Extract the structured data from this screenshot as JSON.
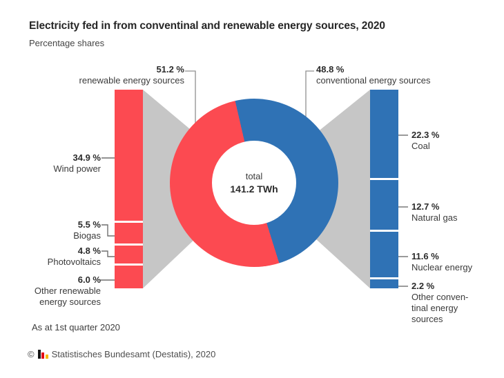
{
  "title": "Electricity fed in from conventinal and renewable energy sources, 2020",
  "subtitle": "Percentage shares",
  "colors": {
    "renewable": "#fc4a51",
    "conventional": "#2f72b5",
    "connector": "#c6c6c6"
  },
  "donut": {
    "center_label": "total",
    "center_value": "141.2 TWh"
  },
  "groups": {
    "renewable": {
      "pct": "51.2 %",
      "label": "renewable energy sources"
    },
    "conventional": {
      "pct": "48.8 %",
      "label": "conventional energy sources"
    }
  },
  "left_items": [
    {
      "pct": "34.9 %",
      "line1": "Wind power"
    },
    {
      "pct": "5.5 %",
      "line1": "Biogas"
    },
    {
      "pct": "4.8 %",
      "line1": "Photovoltaics"
    },
    {
      "pct": "6.0 %",
      "line1": "Other renewable",
      "line2": "energy sources"
    }
  ],
  "right_items": [
    {
      "pct": "22.3 %",
      "line1": "Coal"
    },
    {
      "pct": "12.7 %",
      "line1": "Natural gas"
    },
    {
      "pct": "11.6 %",
      "line1": "Nuclear energy"
    },
    {
      "pct": "2.2 %",
      "line1": "Other conven-",
      "line2": "tinal energy",
      "line3": "sources"
    }
  ],
  "footnote": "As at 1st quarter 2020",
  "copyright": {
    "symbol": "©",
    "text": "Statistisches Bundesamt (Destatis), 2020"
  },
  "chart_data": [
    {
      "type": "pie",
      "subtype": "donut",
      "title": "Electricity fed in from conventinal and renewable energy sources, 2020",
      "subtitle": "Percentage shares",
      "labels": [
        "renewable energy sources",
        "conventional energy sources"
      ],
      "values": [
        51.2,
        48.8
      ],
      "unit": "%",
      "center_text": "total 141.2 TWh",
      "colors": [
        "#fc4a51",
        "#2f72b5"
      ],
      "start_angle_deg": -13
    },
    {
      "type": "bar",
      "name": "renewable energy sources breakdown",
      "orientation": "vertical-stacked",
      "categories": [
        "Wind power",
        "Biogas",
        "Photovoltaics",
        "Other renewable energy sources"
      ],
      "values": [
        34.9,
        5.5,
        4.8,
        6.0
      ],
      "unit": "%"
    },
    {
      "type": "bar",
      "name": "conventional energy sources breakdown",
      "orientation": "vertical-stacked",
      "categories": [
        "Coal",
        "Natural gas",
        "Nuclear energy",
        "Other conventinal energy sources"
      ],
      "values": [
        22.3,
        12.7,
        11.6,
        2.2
      ],
      "unit": "%"
    }
  ]
}
